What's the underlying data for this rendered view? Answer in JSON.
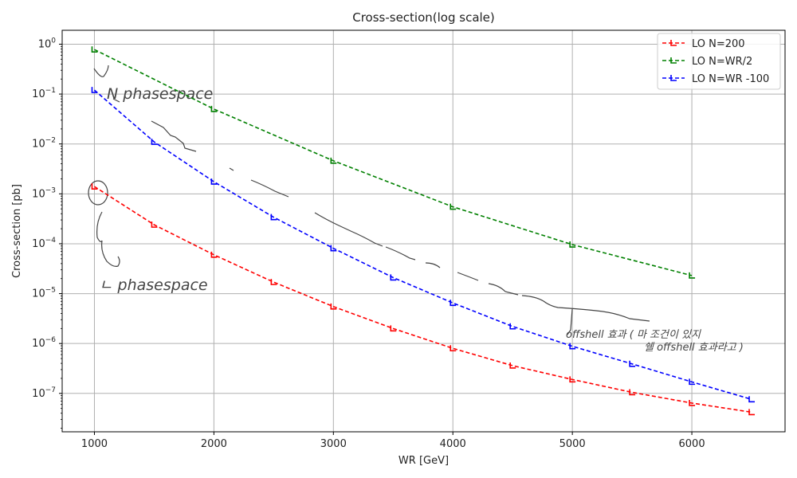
{
  "chart_data": {
    "type": "line",
    "title": "Cross-section(log scale)",
    "xlabel": "WR [GeV]",
    "ylabel": "Cross-section [pb]",
    "xlim": [
      730,
      6780
    ],
    "ylog": true,
    "ylim": [
      1.7e-08,
      1.9
    ],
    "grid": true,
    "legend_position": "top-right",
    "x_ticks": [
      1000,
      2000,
      3000,
      4000,
      5000,
      6000
    ],
    "x_tick_labels": [
      "1000",
      "2000",
      "3000",
      "4000",
      "5000",
      "6000"
    ],
    "y_ticks": [
      1,
      0.1,
      0.01,
      0.001,
      0.0001,
      1e-05,
      1e-06,
      1e-07
    ],
    "y_tick_mantissa": [
      "10",
      "10",
      "10",
      "10",
      "10",
      "10",
      "10",
      "10"
    ],
    "y_tick_exponent": [
      "0",
      "−1",
      "−2",
      "−3",
      "−4",
      "−5",
      "−6",
      "−7"
    ],
    "series": [
      {
        "name": "LO N=200",
        "color": "#ff0000",
        "style": "dashed",
        "marker": "L-shaped",
        "x": [
          1000,
          1500,
          2000,
          2500,
          3000,
          3500,
          4000,
          4500,
          5000,
          5500,
          6000,
          6500
        ],
        "values": [
          0.0014,
          0.00024,
          6e-05,
          1.7e-05,
          5.5e-06,
          2e-06,
          8e-07,
          3.6e-07,
          1.9e-07,
          1.05e-07,
          6.4e-08,
          4.2e-08
        ]
      },
      {
        "name": "LO N=WR/2",
        "color": "#008000",
        "style": "dashed",
        "marker": "L-shaped",
        "x": [
          1000,
          2000,
          3000,
          4000,
          5000,
          6000
        ],
        "values": [
          0.78,
          0.05,
          0.0046,
          0.00055,
          9.6e-05,
          2.3e-05
        ]
      },
      {
        "name": "LO N=WR -100",
        "color": "#0000ff",
        "style": "dashed",
        "marker": "L-shaped",
        "x": [
          1000,
          1500,
          2000,
          2500,
          3000,
          3500,
          4000,
          4500,
          5000,
          5500,
          6000,
          6500
        ],
        "values": [
          0.12,
          0.011,
          0.00175,
          0.00034,
          8.1e-05,
          2.1e-05,
          6.5e-06,
          2.2e-06,
          8.8e-07,
          3.9e-07,
          1.7e-07,
          7.6e-08
        ]
      }
    ],
    "annotations": [
      {
        "id": "upper_note",
        "text": "N phasespace"
      },
      {
        "id": "lower_note",
        "text": "ㄴ phasespace"
      },
      {
        "id": "offshell_note",
        "text_line1": "offshell 효과 ( 마 조건이 있지",
        "text_line2": "쉘 offshell 효과라고 )"
      }
    ]
  }
}
